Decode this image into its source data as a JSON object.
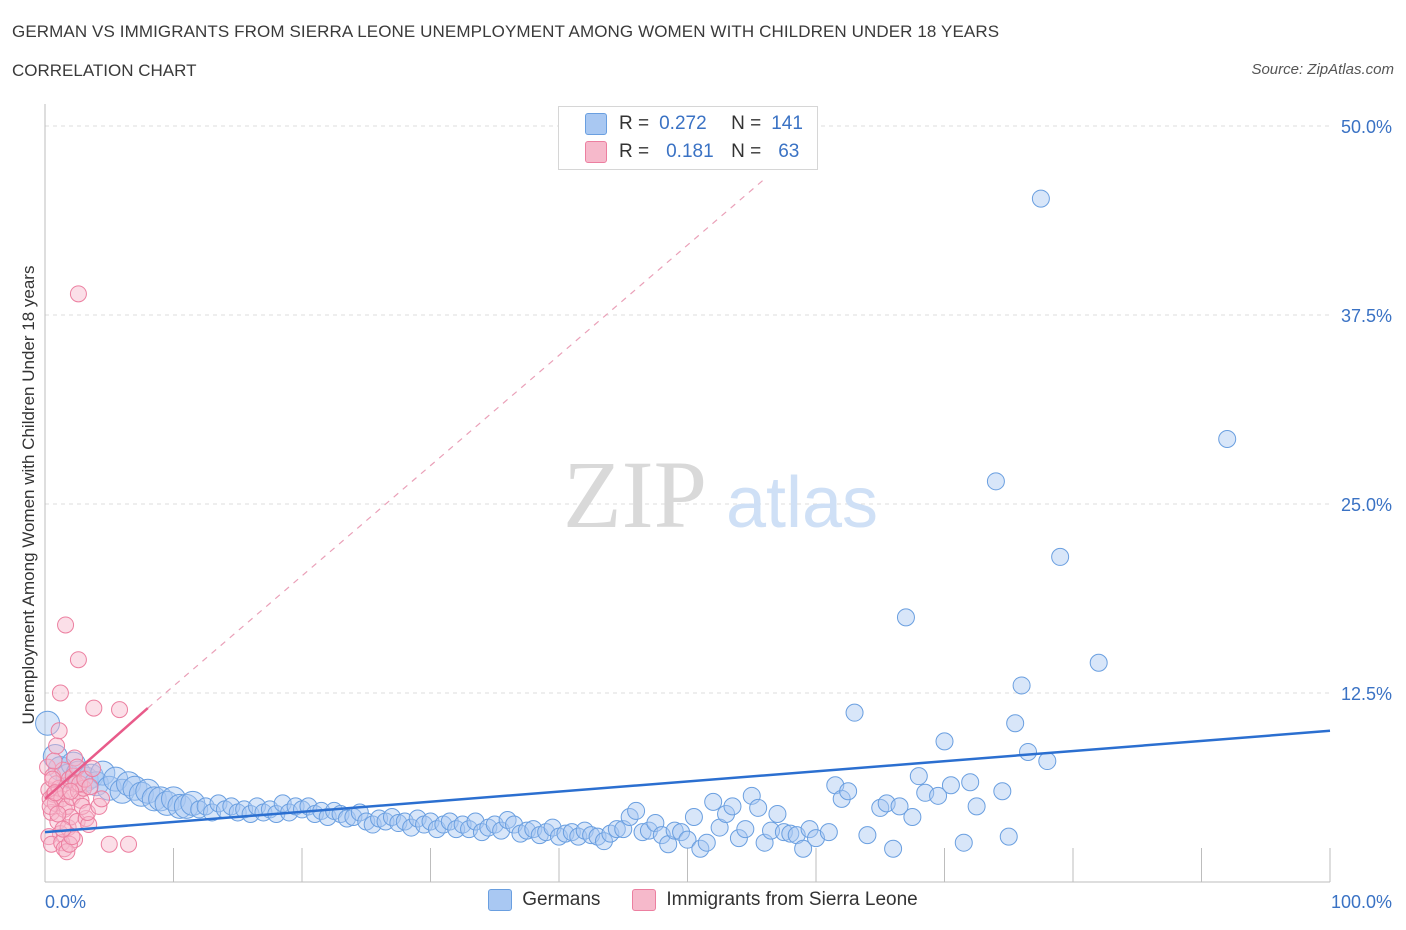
{
  "title": "GERMAN VS IMMIGRANTS FROM SIERRA LEONE UNEMPLOYMENT AMONG WOMEN WITH CHILDREN UNDER 18 YEARS",
  "subtitle": "CORRELATION CHART",
  "source": "Source: ZipAtlas.com",
  "watermark": {
    "zip": "ZIP",
    "atlas": "atlas"
  },
  "legend_top": {
    "row1": {
      "r_label": "R =",
      "r_value": "0.272",
      "n_label": "N =",
      "n_value": "141"
    },
    "row2": {
      "r_label": "R =",
      "r_value": "0.181",
      "n_label": "N =",
      "n_value": "63"
    }
  },
  "colors": {
    "germans": "#6a9fe0",
    "germans_fill": "#a9c8f2",
    "sierra": "#ec7fa0",
    "sierra_fill": "#f6b9cb",
    "blue_line": "#2b6fd0",
    "pink_line": "#e85b8a",
    "axis_text": "#3a72c4"
  },
  "chart_data": {
    "type": "scatter",
    "ylabel": "Unemployment Among Women with Children Under 18 years",
    "x_ticks": [
      "0.0%",
      "100.0%"
    ],
    "y_ticks": [
      "12.5%",
      "25.0%",
      "37.5%",
      "50.0%"
    ],
    "xlim": [
      0,
      100
    ],
    "ylim": [
      0,
      50
    ],
    "grid": true,
    "legend_position": "bottom",
    "series": [
      {
        "name": "Germans",
        "R": 0.272,
        "N": 141,
        "trend": {
          "x": [
            0,
            100
          ],
          "y": [
            3.3,
            10.0
          ]
        },
        "points": [
          [
            0.2,
            10.5
          ],
          [
            0.8,
            8.3
          ],
          [
            1.2,
            7.5
          ],
          [
            1.8,
            7.0
          ],
          [
            2.2,
            7.8
          ],
          [
            2.6,
            7.2
          ],
          [
            3.2,
            6.8
          ],
          [
            3.6,
            7.0
          ],
          [
            4.0,
            6.5
          ],
          [
            4.5,
            7.2
          ],
          [
            5.0,
            6.2
          ],
          [
            5.5,
            6.8
          ],
          [
            6.0,
            6.0
          ],
          [
            6.5,
            6.5
          ],
          [
            7.0,
            6.2
          ],
          [
            7.5,
            5.8
          ],
          [
            8.0,
            6.0
          ],
          [
            8.5,
            5.5
          ],
          [
            9.0,
            5.5
          ],
          [
            9.5,
            5.2
          ],
          [
            10.0,
            5.5
          ],
          [
            10.5,
            5.0
          ],
          [
            11.0,
            5.0
          ],
          [
            11.5,
            5.2
          ],
          [
            12.0,
            4.8
          ],
          [
            12.5,
            5.0
          ],
          [
            13.0,
            4.6
          ],
          [
            13.5,
            5.2
          ],
          [
            14.0,
            4.8
          ],
          [
            14.5,
            5.0
          ],
          [
            15.0,
            4.6
          ],
          [
            15.5,
            4.8
          ],
          [
            16.0,
            4.5
          ],
          [
            16.5,
            5.0
          ],
          [
            17.0,
            4.6
          ],
          [
            17.5,
            4.8
          ],
          [
            18.0,
            4.5
          ],
          [
            18.5,
            5.2
          ],
          [
            19.0,
            4.6
          ],
          [
            19.5,
            5.0
          ],
          [
            20.0,
            4.8
          ],
          [
            20.5,
            5.0
          ],
          [
            21.0,
            4.5
          ],
          [
            21.5,
            4.7
          ],
          [
            22.0,
            4.3
          ],
          [
            22.5,
            4.7
          ],
          [
            23.0,
            4.5
          ],
          [
            23.5,
            4.2
          ],
          [
            24.0,
            4.3
          ],
          [
            24.5,
            4.6
          ],
          [
            25.0,
            4.0
          ],
          [
            25.5,
            3.8
          ],
          [
            26.0,
            4.2
          ],
          [
            26.5,
            4.0
          ],
          [
            27.0,
            4.3
          ],
          [
            27.5,
            3.9
          ],
          [
            28.0,
            4.0
          ],
          [
            28.5,
            3.6
          ],
          [
            29.0,
            4.2
          ],
          [
            29.5,
            3.8
          ],
          [
            30.0,
            4.0
          ],
          [
            30.5,
            3.5
          ],
          [
            31.0,
            3.8
          ],
          [
            31.5,
            4.0
          ],
          [
            32.0,
            3.5
          ],
          [
            32.5,
            3.8
          ],
          [
            33.0,
            3.5
          ],
          [
            33.5,
            4.0
          ],
          [
            34.0,
            3.3
          ],
          [
            34.5,
            3.6
          ],
          [
            35.0,
            3.8
          ],
          [
            35.5,
            3.4
          ],
          [
            36.0,
            4.1
          ],
          [
            36.5,
            3.8
          ],
          [
            37.0,
            3.2
          ],
          [
            37.5,
            3.4
          ],
          [
            38.0,
            3.5
          ],
          [
            38.5,
            3.1
          ],
          [
            39.0,
            3.3
          ],
          [
            39.5,
            3.6
          ],
          [
            40.0,
            3.0
          ],
          [
            40.5,
            3.2
          ],
          [
            41.0,
            3.3
          ],
          [
            41.5,
            3.0
          ],
          [
            42.0,
            3.4
          ],
          [
            42.5,
            3.1
          ],
          [
            43.0,
            3.0
          ],
          [
            43.5,
            2.7
          ],
          [
            44.0,
            3.2
          ],
          [
            44.5,
            3.5
          ],
          [
            45.0,
            3.5
          ],
          [
            45.5,
            4.3
          ],
          [
            46.0,
            4.7
          ],
          [
            46.5,
            3.3
          ],
          [
            47.0,
            3.4
          ],
          [
            47.5,
            3.9
          ],
          [
            48.0,
            3.1
          ],
          [
            48.5,
            2.5
          ],
          [
            49.0,
            3.4
          ],
          [
            49.5,
            3.3
          ],
          [
            50.0,
            2.8
          ],
          [
            50.5,
            4.3
          ],
          [
            51.0,
            2.2
          ],
          [
            51.5,
            2.6
          ],
          [
            52.0,
            5.3
          ],
          [
            52.5,
            3.6
          ],
          [
            53.0,
            4.5
          ],
          [
            53.5,
            5.0
          ],
          [
            54.0,
            2.9
          ],
          [
            54.5,
            3.5
          ],
          [
            55.0,
            5.7
          ],
          [
            55.5,
            4.9
          ],
          [
            56.0,
            2.6
          ],
          [
            56.5,
            3.4
          ],
          [
            57.0,
            4.5
          ],
          [
            57.5,
            3.3
          ],
          [
            58.0,
            3.2
          ],
          [
            58.5,
            3.1
          ],
          [
            59.0,
            2.2
          ],
          [
            59.5,
            3.5
          ],
          [
            60.0,
            2.9
          ],
          [
            61.0,
            3.3
          ],
          [
            61.5,
            6.4
          ],
          [
            62.0,
            5.5
          ],
          [
            62.5,
            6.0
          ],
          [
            63.0,
            11.2
          ],
          [
            64.0,
            3.1
          ],
          [
            65.0,
            4.9
          ],
          [
            65.5,
            5.2
          ],
          [
            66.0,
            2.2
          ],
          [
            66.5,
            5.0
          ],
          [
            67.0,
            17.5
          ],
          [
            67.5,
            4.3
          ],
          [
            68.0,
            7.0
          ],
          [
            68.5,
            5.9
          ],
          [
            69.5,
            5.7
          ],
          [
            70.0,
            9.3
          ],
          [
            70.5,
            6.4
          ],
          [
            71.5,
            2.6
          ],
          [
            72.0,
            6.6
          ],
          [
            72.5,
            5.0
          ],
          [
            74.0,
            26.5
          ],
          [
            74.5,
            6.0
          ],
          [
            75.0,
            3.0
          ],
          [
            75.5,
            10.5
          ],
          [
            76.0,
            13.0
          ],
          [
            76.5,
            8.6
          ],
          [
            77.5,
            45.2
          ],
          [
            78.0,
            8.0
          ],
          [
            79.0,
            21.5
          ],
          [
            82.0,
            14.5
          ],
          [
            92.0,
            29.3
          ]
        ]
      },
      {
        "name": "Immigrants from Sierra Leone",
        "R": 0.181,
        "N": 63,
        "trend": {
          "x": [
            0,
            8
          ],
          "y": [
            5.5,
            11.5
          ],
          "dashed_extension": {
            "x": [
              8,
              56
            ],
            "y": [
              11.5,
              46.5
            ]
          }
        },
        "points": [
          [
            0.2,
            7.6
          ],
          [
            0.3,
            6.1
          ],
          [
            0.4,
            5.5
          ],
          [
            0.5,
            4.6
          ],
          [
            0.6,
            7.0
          ],
          [
            0.7,
            5.8
          ],
          [
            0.8,
            5.2
          ],
          [
            0.9,
            6.5
          ],
          [
            1.0,
            4.0
          ],
          [
            1.1,
            6.2
          ],
          [
            1.2,
            3.2
          ],
          [
            1.3,
            5.5
          ],
          [
            1.4,
            7.4
          ],
          [
            1.5,
            4.8
          ],
          [
            1.6,
            6.0
          ],
          [
            1.7,
            5.0
          ],
          [
            1.8,
            3.6
          ],
          [
            1.9,
            6.8
          ],
          [
            2.0,
            4.3
          ],
          [
            2.1,
            5.6
          ],
          [
            2.2,
            7.0
          ],
          [
            2.3,
            2.8
          ],
          [
            2.4,
            6.5
          ],
          [
            2.5,
            4.0
          ],
          [
            2.6,
            6.0
          ],
          [
            2.8,
            5.4
          ],
          [
            3.0,
            6.2
          ],
          [
            3.2,
            4.2
          ],
          [
            3.4,
            3.8
          ],
          [
            0.3,
            3.0
          ],
          [
            0.5,
            2.5
          ],
          [
            0.7,
            8.0
          ],
          [
            0.9,
            9.0
          ],
          [
            1.1,
            10.0
          ],
          [
            1.3,
            2.6
          ],
          [
            1.5,
            2.2
          ],
          [
            1.7,
            2.0
          ],
          [
            1.9,
            2.5
          ],
          [
            2.1,
            3.0
          ],
          [
            2.3,
            8.2
          ],
          [
            2.5,
            7.6
          ],
          [
            2.7,
            6.5
          ],
          [
            2.9,
            5.0
          ],
          [
            3.1,
            6.8
          ],
          [
            3.3,
            4.6
          ],
          [
            3.5,
            6.3
          ],
          [
            3.7,
            7.5
          ],
          [
            0.4,
            5.0
          ],
          [
            0.6,
            6.8
          ],
          [
            0.8,
            5.9
          ],
          [
            1.0,
            4.5
          ],
          [
            1.2,
            12.5
          ],
          [
            1.6,
            17.0
          ],
          [
            2.6,
            14.7
          ],
          [
            2.6,
            38.9
          ],
          [
            3.8,
            11.5
          ],
          [
            4.2,
            5.0
          ],
          [
            4.4,
            5.5
          ],
          [
            5.0,
            2.5
          ],
          [
            5.8,
            11.4
          ],
          [
            6.5,
            2.5
          ],
          [
            1.4,
            3.5
          ],
          [
            2.0,
            6.0
          ]
        ]
      }
    ]
  },
  "bottom_legend": [
    "Germans",
    "Immigrants from Sierra Leone"
  ]
}
